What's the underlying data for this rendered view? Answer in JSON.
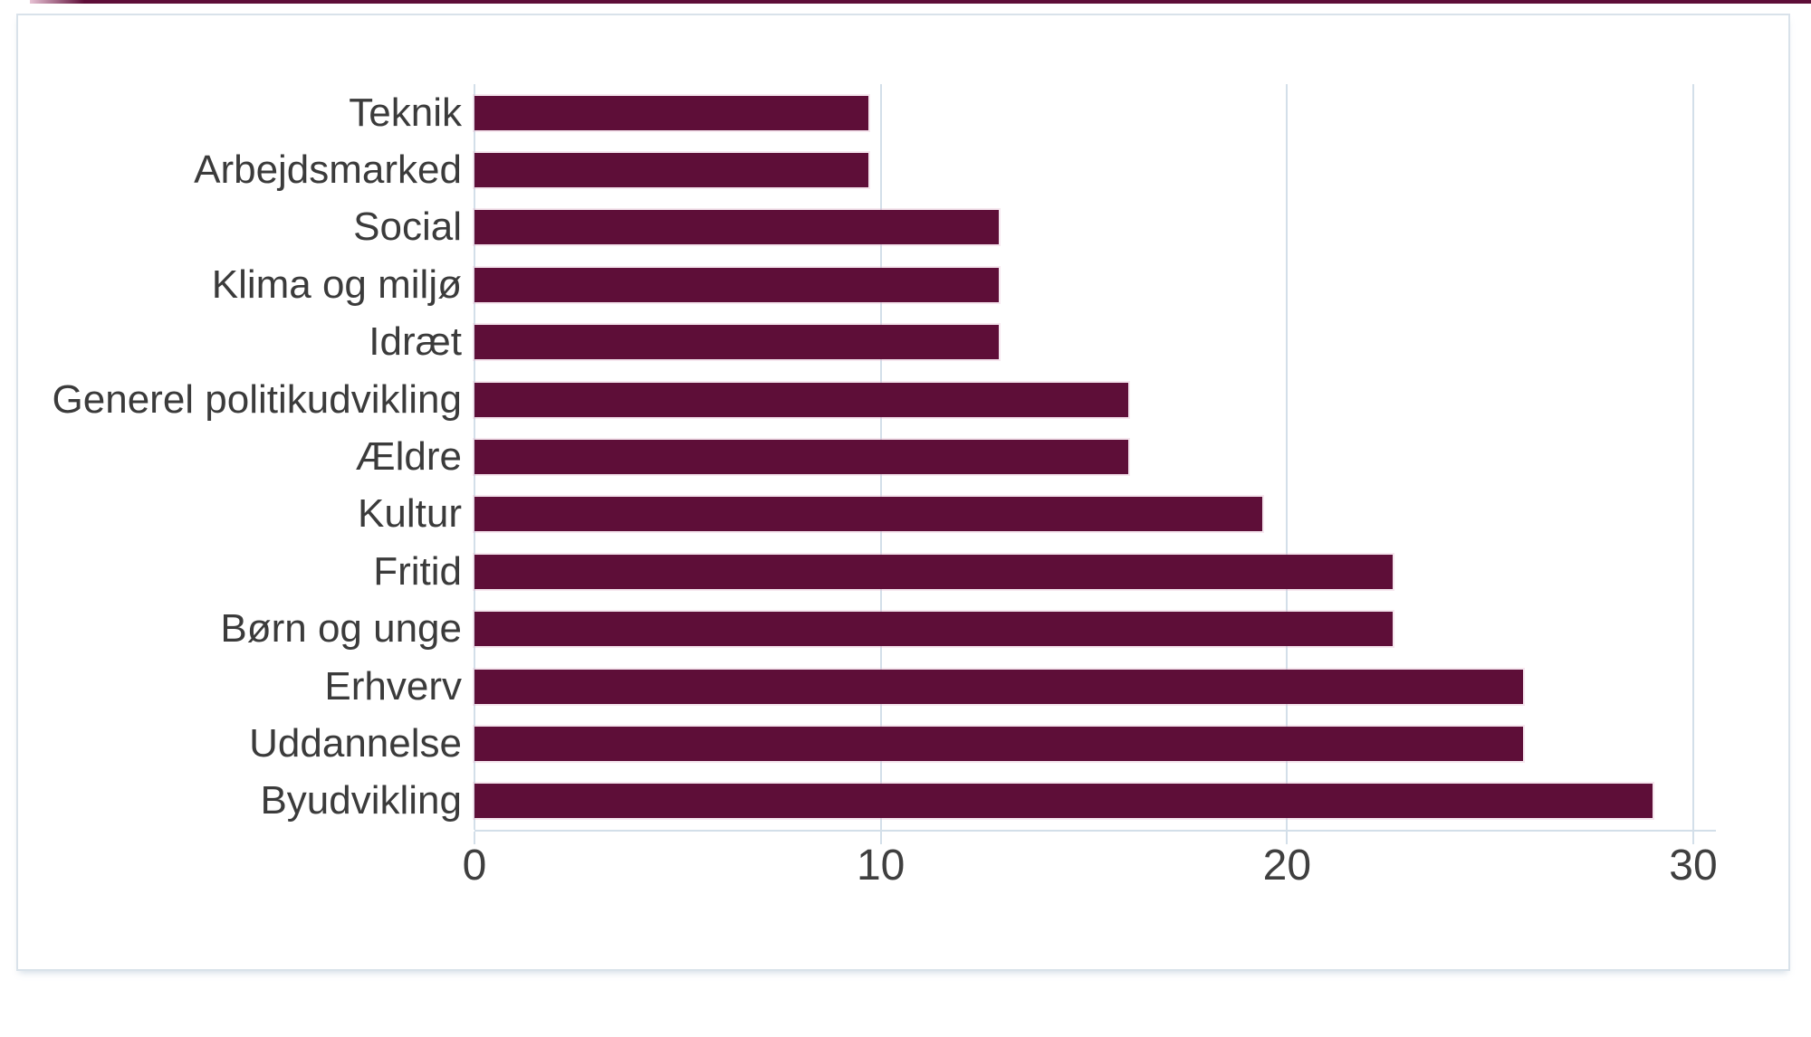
{
  "page": {
    "top_strip_color": "#5E0E38",
    "frame_border_color": "#d9e2ea"
  },
  "chart_data": {
    "type": "bar",
    "orientation": "horizontal",
    "title": "",
    "xlabel": "",
    "ylabel": "",
    "categories": [
      "Teknik",
      "Arbejdsmarked",
      "Social",
      "Klima og miljø",
      "Idræt",
      "Generel politikudvikling",
      "Ældre",
      "Kultur",
      "Fritid",
      "Børn og unge",
      "Erhverv",
      "Uddannelse",
      "Byudvikling"
    ],
    "values": [
      9.7,
      9.7,
      12.9,
      12.9,
      12.9,
      16.1,
      16.1,
      19.4,
      22.6,
      22.6,
      25.8,
      25.8,
      29.0
    ],
    "xlim": [
      0,
      30
    ],
    "x_ticks": [
      0,
      10,
      20,
      30
    ],
    "grid": true,
    "legend": false,
    "bar_color": "#5E0E38",
    "grid_color": "#d3dfe9",
    "axis_text_color": "#3f3f3f",
    "label_text_color": "#3b3b3b"
  }
}
